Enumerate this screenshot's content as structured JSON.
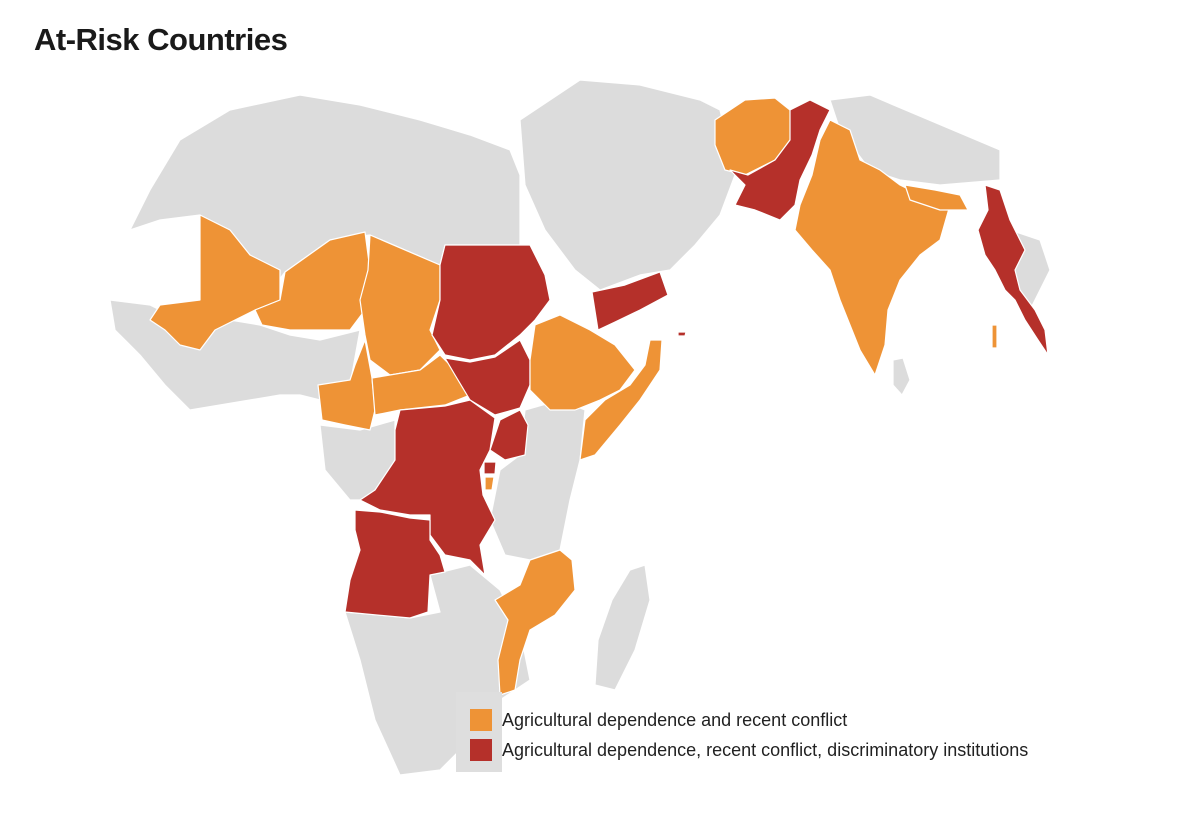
{
  "title": "At-Risk Countries",
  "colors": {
    "background_land": "#dcdcdc",
    "border": "#ffffff",
    "orange": "#ee9336",
    "red": "#b5302a"
  },
  "legend": [
    {
      "label": "Agricultural dependence and recent conflict",
      "color": "#ee9336"
    },
    {
      "label": "Agricultural dependence, recent conflict, discriminatory institutions",
      "color": "#b5302a"
    }
  ],
  "categories": {
    "orange": [
      "Mali",
      "Niger",
      "Nigeria",
      "Chad",
      "Cameroon",
      "Central African Republic",
      "Ethiopia",
      "Somalia",
      "Mozambique",
      "Afghanistan",
      "India",
      "Nepal",
      "Burundi",
      "Malawi"
    ],
    "red": [
      "Sudan",
      "South Sudan",
      "Democratic Republic of the Congo",
      "Angola",
      "Uganda",
      "Rwanda",
      "Yemen",
      "Pakistan",
      "Myanmar"
    ]
  }
}
